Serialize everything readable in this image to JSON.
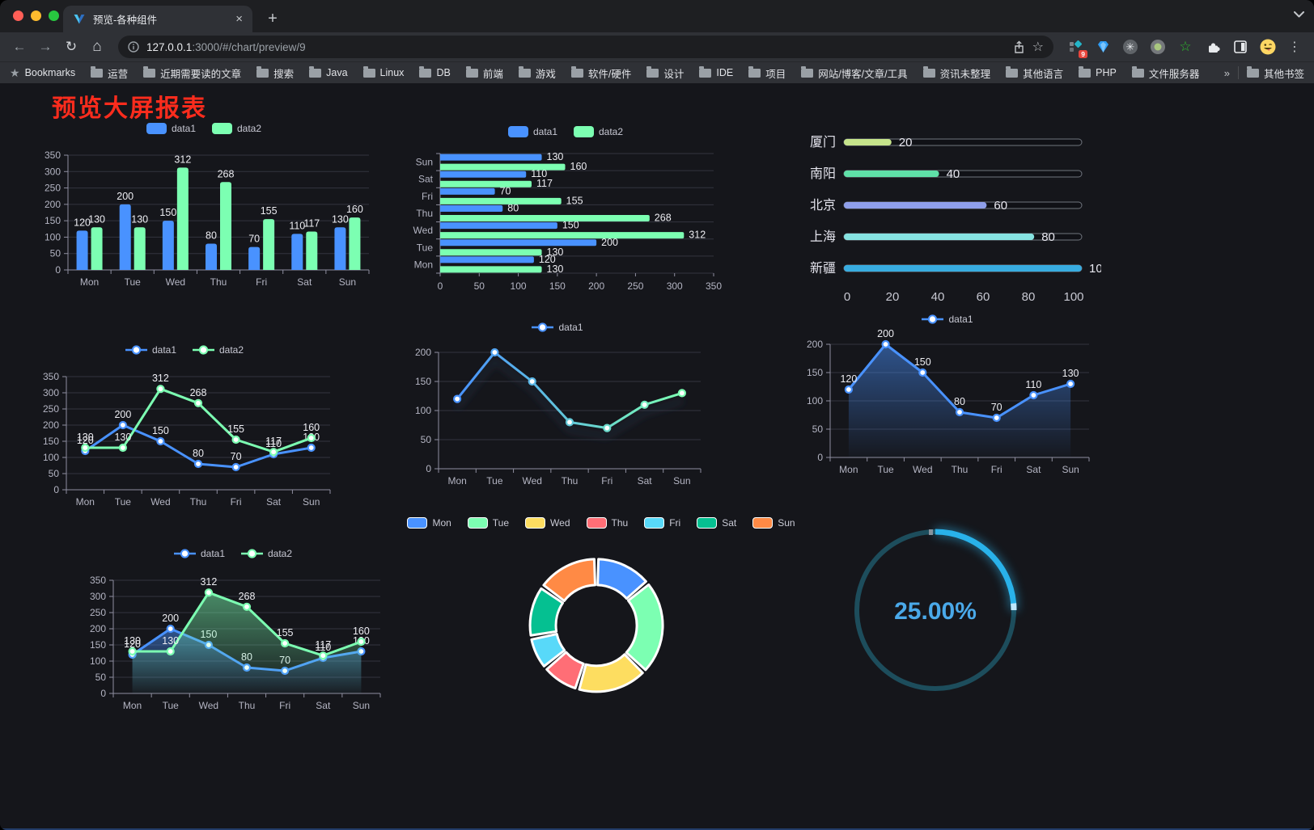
{
  "browser": {
    "traffic_lights": {
      "close": "#ff5f57",
      "minimize": "#febc2e",
      "zoom": "#28c840"
    },
    "tab": {
      "title": "预览-各种组件",
      "close_glyph": "×",
      "new_tab_glyph": "+"
    },
    "nav": {
      "back_glyph": "←",
      "forward_glyph": "→",
      "reload_glyph": "↻",
      "home_glyph": "⌂",
      "url_host": "127.0.0.1",
      "url_rest": ":3000/#/chart/preview/9",
      "star_glyph": "☆"
    },
    "extensions_badge": "9",
    "menu_glyph": "⋮",
    "bookmarks": {
      "manager_label": "Bookmarks",
      "items": [
        "运营",
        "近期需要读的文章",
        "搜索",
        "Java",
        "Linux",
        "DB",
        "前端",
        "游戏",
        "软件/硬件",
        "设计",
        "IDE",
        "项目",
        "网站/博客/文章/工具",
        "资讯未整理",
        "其他语言",
        "PHP",
        "文件服务器"
      ],
      "overflow_glyph": "»",
      "other_label": "其他书签"
    }
  },
  "page": {
    "title": "预览大屏报表",
    "title_color": "#fb2c1d",
    "background": "#15161b"
  },
  "chart_data": [
    {
      "type": "bar",
      "orientation": "vertical",
      "categories": [
        "Mon",
        "Tue",
        "Wed",
        "Thu",
        "Fri",
        "Sat",
        "Sun"
      ],
      "series": [
        {
          "name": "data1",
          "color": "#4992ff",
          "values": [
            120,
            200,
            150,
            80,
            70,
            110,
            130
          ]
        },
        {
          "name": "data2",
          "color": "#7cffb2",
          "values": [
            130,
            130,
            312,
            268,
            155,
            117,
            160
          ]
        }
      ],
      "ylim": [
        0,
        350
      ],
      "ystep": 50,
      "legend_position": "top",
      "grid": true
    },
    {
      "type": "bar",
      "orientation": "horizontal",
      "categories": [
        "Mon",
        "Tue",
        "Wed",
        "Thu",
        "Fri",
        "Sat",
        "Sun"
      ],
      "series": [
        {
          "name": "data1",
          "color": "#4992ff",
          "values": [
            120,
            200,
            150,
            80,
            70,
            110,
            130
          ]
        },
        {
          "name": "data2",
          "color": "#7cffb2",
          "values": [
            130,
            130,
            312,
            268,
            155,
            117,
            160
          ]
        }
      ],
      "xlim": [
        0,
        350
      ],
      "xstep": 50,
      "legend_position": "top",
      "grid": true
    },
    {
      "type": "progress",
      "categories": [
        "厦门",
        "南阳",
        "北京",
        "上海",
        "新疆"
      ],
      "values": [
        20,
        40,
        60,
        80,
        100
      ],
      "colors": [
        "#c6e48b",
        "#5fe0a8",
        "#8f9fea",
        "#86e3e1",
        "#38ace0"
      ],
      "xticks": [
        0,
        20,
        40,
        60,
        80,
        100
      ],
      "xlim": [
        0,
        100
      ]
    },
    {
      "type": "line",
      "categories": [
        "Mon",
        "Tue",
        "Wed",
        "Thu",
        "Fri",
        "Sat",
        "Sun"
      ],
      "series": [
        {
          "name": "data1",
          "color": "#4992ff",
          "values": [
            120,
            200,
            150,
            80,
            70,
            110,
            130
          ]
        },
        {
          "name": "data2",
          "color": "#7cffb2",
          "values": [
            130,
            130,
            312,
            268,
            155,
            117,
            160
          ]
        }
      ],
      "ylim": [
        0,
        350
      ],
      "ystep": 50,
      "show_labels": true,
      "legend_position": "top",
      "grid": true
    },
    {
      "type": "line",
      "categories": [
        "Mon",
        "Tue",
        "Wed",
        "Thu",
        "Fri",
        "Sat",
        "Sun"
      ],
      "series": [
        {
          "name": "data1",
          "color": "#4992ff",
          "values": [
            120,
            200,
            150,
            80,
            70,
            110,
            130
          ]
        }
      ],
      "ylim": [
        0,
        200
      ],
      "ystep": 50,
      "show_labels": false,
      "gradient_stroke": [
        "#4992ff",
        "#7cffb2"
      ],
      "shadow": true,
      "legend_position": "top",
      "grid": true
    },
    {
      "type": "line",
      "area": true,
      "categories": [
        "Mon",
        "Tue",
        "Wed",
        "Thu",
        "Fri",
        "Sat",
        "Sun"
      ],
      "series": [
        {
          "name": "data1",
          "color": "#4992ff",
          "values": [
            120,
            200,
            150,
            80,
            70,
            110,
            130
          ]
        }
      ],
      "ylim": [
        0,
        200
      ],
      "ystep": 50,
      "show_labels": true,
      "legend_position": "top",
      "grid": true
    },
    {
      "type": "line",
      "area": true,
      "categories": [
        "Mon",
        "Tue",
        "Wed",
        "Thu",
        "Fri",
        "Sat",
        "Sun"
      ],
      "series": [
        {
          "name": "data1",
          "color": "#4992ff",
          "values": [
            120,
            200,
            150,
            80,
            70,
            110,
            130
          ]
        },
        {
          "name": "data2",
          "color": "#7cffb2",
          "values": [
            130,
            130,
            312,
            268,
            155,
            117,
            160
          ]
        }
      ],
      "ylim": [
        0,
        350
      ],
      "ystep": 50,
      "show_labels": true,
      "legend_position": "top",
      "grid": true
    },
    {
      "type": "pie",
      "inner_ratio": 0.61,
      "categories": [
        "Mon",
        "Tue",
        "Wed",
        "Thu",
        "Fri",
        "Sat",
        "Sun"
      ],
      "values": [
        120,
        200,
        150,
        80,
        70,
        110,
        130
      ],
      "colors": [
        "#4992ff",
        "#7cffb2",
        "#fddd60",
        "#ff6e76",
        "#58d9f9",
        "#05c091",
        "#ff8a45"
      ],
      "legend_position": "top"
    },
    {
      "type": "gauge",
      "value": 25,
      "label": "25.00%",
      "progress_color": "#29b2ea",
      "track_color": "#1d4d5c",
      "text_color": "#4aa9e9"
    }
  ]
}
